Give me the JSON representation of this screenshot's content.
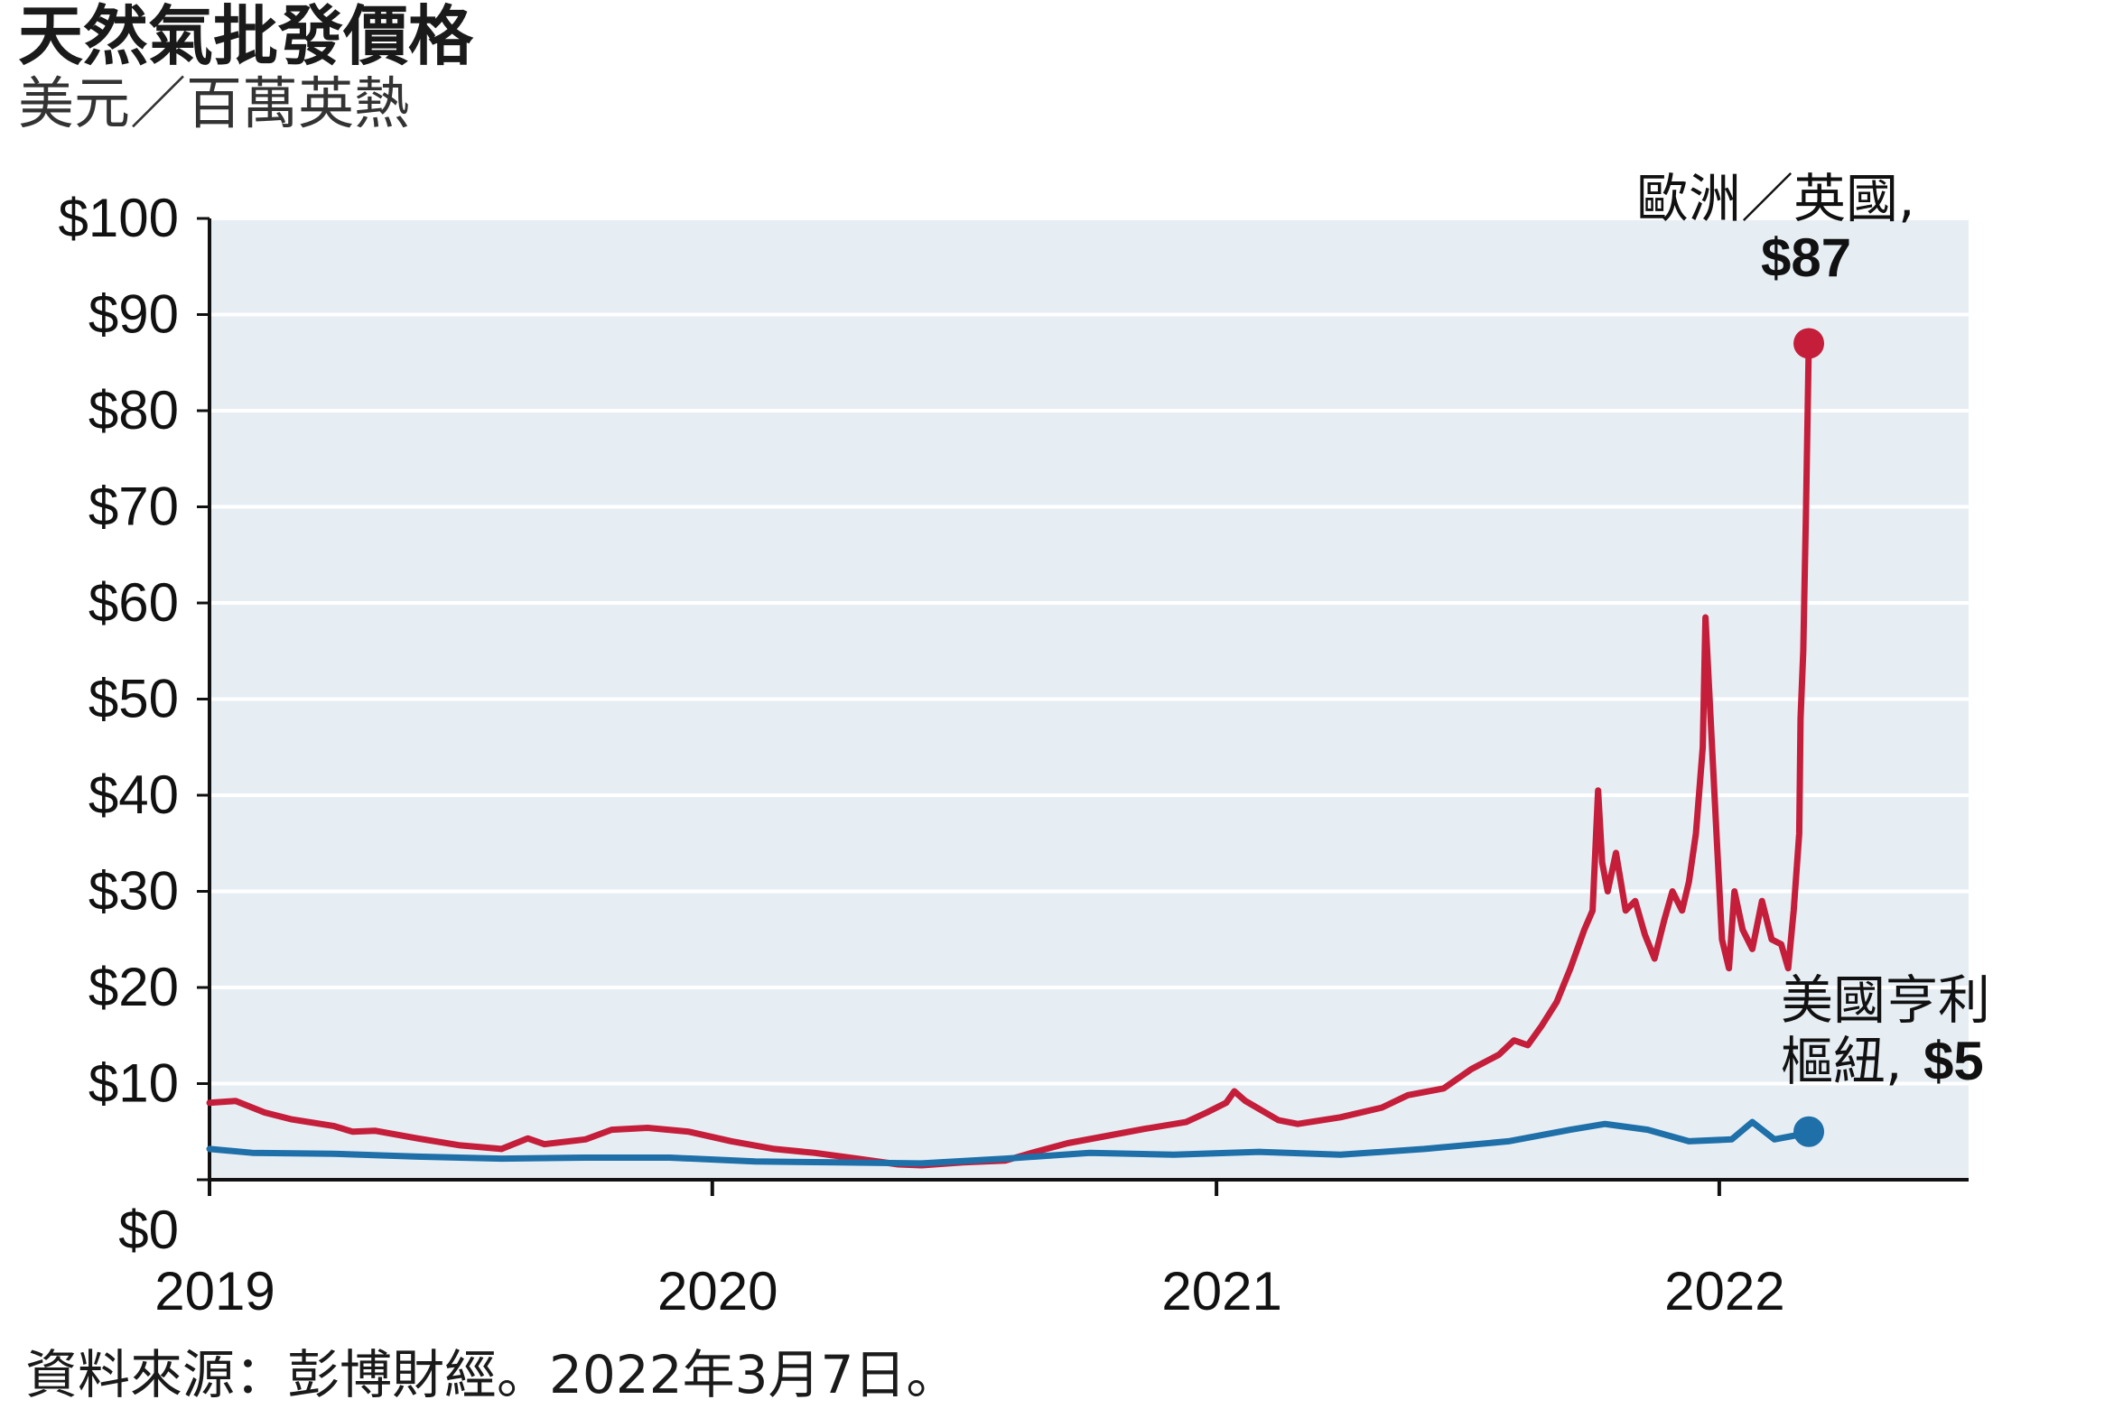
{
  "header": {
    "title": "天然氣批發價格",
    "subtitle": "美元／百萬英熱"
  },
  "footer": {
    "source": "資料來源：彭博財經。2022年3月7日。"
  },
  "chart_data": {
    "type": "line",
    "x_type": "date",
    "xlim": [
      "2019-01-01",
      "2022-07-01"
    ],
    "ylim": [
      0,
      100
    ],
    "y_ticks": [
      {
        "value": 0,
        "label": "$0"
      },
      {
        "value": 10,
        "label": "$10"
      },
      {
        "value": 20,
        "label": "$20"
      },
      {
        "value": 30,
        "label": "$30"
      },
      {
        "value": 40,
        "label": "$40"
      },
      {
        "value": 50,
        "label": "$50"
      },
      {
        "value": 60,
        "label": "$60"
      },
      {
        "value": 70,
        "label": "$70"
      },
      {
        "value": 80,
        "label": "$80"
      },
      {
        "value": 90,
        "label": "$90"
      },
      {
        "value": 100,
        "label": "$100"
      }
    ],
    "x_ticks": [
      {
        "value": "2019-01-01",
        "label": "2019"
      },
      {
        "value": "2020-01-01",
        "label": "2020"
      },
      {
        "value": "2021-01-01",
        "label": "2021"
      },
      {
        "value": "2022-01-01",
        "label": "2022"
      }
    ],
    "grid": true,
    "colors": {
      "plot_background": "#e6eef4",
      "grid": "#ffffff",
      "axis": "#111111"
    },
    "series": [
      {
        "label_lines": [
          "歐洲／英國,",
          "$87"
        ],
        "color": "#c41e3a",
        "points": [
          [
            "2019-01-01",
            8.0
          ],
          [
            "2019-01-20",
            8.2
          ],
          [
            "2019-02-10",
            7.0
          ],
          [
            "2019-03-01",
            6.3
          ],
          [
            "2019-04-01",
            5.6
          ],
          [
            "2019-04-15",
            5.0
          ],
          [
            "2019-05-01",
            5.1
          ],
          [
            "2019-06-01",
            4.3
          ],
          [
            "2019-07-01",
            3.6
          ],
          [
            "2019-08-01",
            3.2
          ],
          [
            "2019-08-20",
            4.3
          ],
          [
            "2019-09-01",
            3.7
          ],
          [
            "2019-10-01",
            4.2
          ],
          [
            "2019-10-20",
            5.2
          ],
          [
            "2019-11-15",
            5.4
          ],
          [
            "2019-12-15",
            5.0
          ],
          [
            "2020-01-15",
            4.0
          ],
          [
            "2020-02-15",
            3.2
          ],
          [
            "2020-03-15",
            2.8
          ],
          [
            "2020-04-15",
            2.2
          ],
          [
            "2020-05-15",
            1.6
          ],
          [
            "2020-06-01",
            1.5
          ],
          [
            "2020-07-01",
            1.8
          ],
          [
            "2020-08-01",
            2.0
          ],
          [
            "2020-08-20",
            2.8
          ],
          [
            "2020-09-15",
            3.8
          ],
          [
            "2020-10-15",
            4.6
          ],
          [
            "2020-11-10",
            5.3
          ],
          [
            "2020-12-10",
            6.0
          ],
          [
            "2020-12-25",
            7.0
          ],
          [
            "2021-01-08",
            8.0
          ],
          [
            "2021-01-14",
            9.2
          ],
          [
            "2021-01-22",
            8.2
          ],
          [
            "2021-02-15",
            6.2
          ],
          [
            "2021-03-01",
            5.8
          ],
          [
            "2021-04-01",
            6.5
          ],
          [
            "2021-05-01",
            7.5
          ],
          [
            "2021-05-20",
            8.8
          ],
          [
            "2021-06-15",
            9.5
          ],
          [
            "2021-07-05",
            11.5
          ],
          [
            "2021-07-25",
            13.0
          ],
          [
            "2021-08-05",
            14.5
          ],
          [
            "2021-08-15",
            14.0
          ],
          [
            "2021-08-25",
            16.0
          ],
          [
            "2021-09-05",
            18.5
          ],
          [
            "2021-09-15",
            22.0
          ],
          [
            "2021-09-25",
            26.0
          ],
          [
            "2021-10-01",
            28.0
          ],
          [
            "2021-10-05",
            40.5
          ],
          [
            "2021-10-08",
            33.0
          ],
          [
            "2021-10-12",
            30.0
          ],
          [
            "2021-10-18",
            34.0
          ],
          [
            "2021-10-25",
            28.0
          ],
          [
            "2021-11-01",
            29.0
          ],
          [
            "2021-11-08",
            25.5
          ],
          [
            "2021-11-15",
            23.0
          ],
          [
            "2021-11-22",
            27.0
          ],
          [
            "2021-11-28",
            30.0
          ],
          [
            "2021-12-05",
            28.0
          ],
          [
            "2021-12-10",
            31.0
          ],
          [
            "2021-12-15",
            36.0
          ],
          [
            "2021-12-20",
            45.0
          ],
          [
            "2021-12-22",
            58.5
          ],
          [
            "2021-12-25",
            50.0
          ],
          [
            "2021-12-30",
            36.0
          ],
          [
            "2022-01-03",
            25.0
          ],
          [
            "2022-01-08",
            22.0
          ],
          [
            "2022-01-12",
            30.0
          ],
          [
            "2022-01-18",
            26.0
          ],
          [
            "2022-01-25",
            24.0
          ],
          [
            "2022-02-01",
            29.0
          ],
          [
            "2022-02-08",
            25.0
          ],
          [
            "2022-02-15",
            24.5
          ],
          [
            "2022-02-20",
            22.0
          ],
          [
            "2022-02-24",
            28.0
          ],
          [
            "2022-02-28",
            36.0
          ],
          [
            "2022-03-01",
            48.0
          ],
          [
            "2022-03-03",
            55.0
          ],
          [
            "2022-03-05",
            70.0
          ],
          [
            "2022-03-07",
            87.0
          ]
        ],
        "end_point": [
          "2022-03-07",
          87.0
        ]
      },
      {
        "label_lines": [
          "美國亨利",
          "樞紐,",
          "$5"
        ],
        "color": "#1f6fa8",
        "points": [
          [
            "2019-01-01",
            3.2
          ],
          [
            "2019-02-01",
            2.8
          ],
          [
            "2019-04-01",
            2.7
          ],
          [
            "2019-06-01",
            2.4
          ],
          [
            "2019-08-01",
            2.2
          ],
          [
            "2019-10-01",
            2.3
          ],
          [
            "2019-12-01",
            2.3
          ],
          [
            "2020-02-01",
            1.9
          ],
          [
            "2020-04-01",
            1.8
          ],
          [
            "2020-06-01",
            1.7
          ],
          [
            "2020-08-01",
            2.2
          ],
          [
            "2020-10-01",
            2.8
          ],
          [
            "2020-12-01",
            2.6
          ],
          [
            "2021-02-01",
            2.9
          ],
          [
            "2021-04-01",
            2.6
          ],
          [
            "2021-06-01",
            3.2
          ],
          [
            "2021-08-01",
            4.0
          ],
          [
            "2021-09-15",
            5.2
          ],
          [
            "2021-10-10",
            5.8
          ],
          [
            "2021-11-10",
            5.2
          ],
          [
            "2021-12-10",
            4.0
          ],
          [
            "2022-01-10",
            4.2
          ],
          [
            "2022-01-25",
            6.0
          ],
          [
            "2022-02-10",
            4.2
          ],
          [
            "2022-02-25",
            4.6
          ],
          [
            "2022-03-07",
            5.0
          ]
        ],
        "end_point": [
          "2022-03-07",
          5.0
        ]
      }
    ]
  }
}
